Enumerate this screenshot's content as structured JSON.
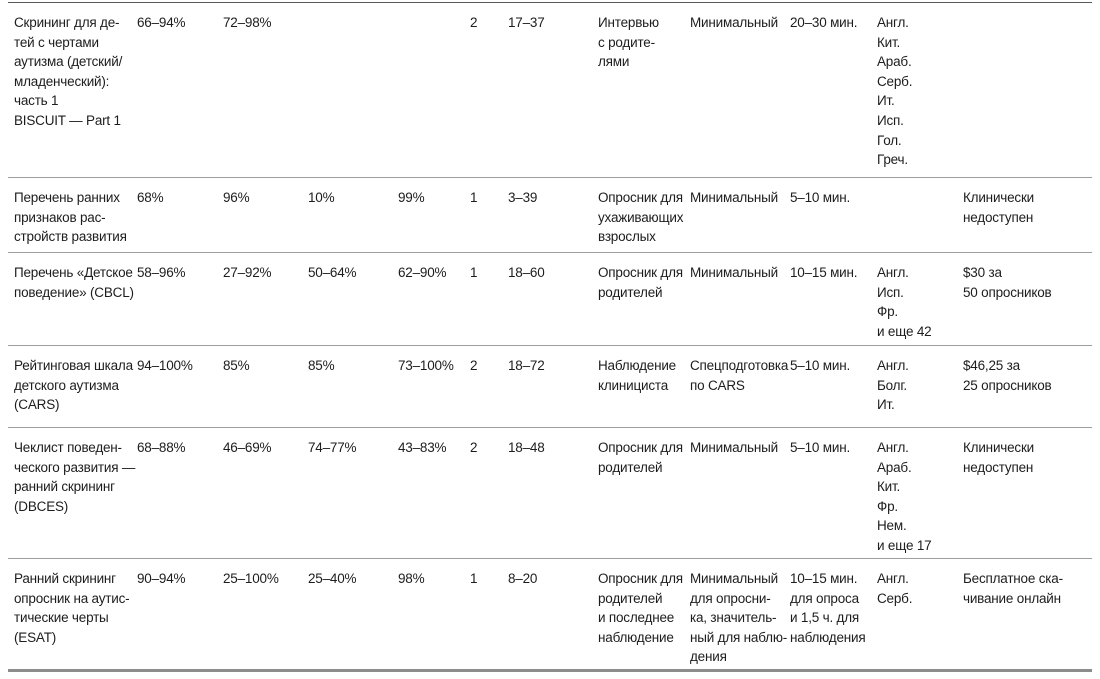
{
  "table": {
    "rows": [
      {
        "name": "Скрининг для де-\nтей с чертами\nаутизма (детский/\nмладенческий):\nчасть 1\nBISCUIT — Part 1",
        "pct1": "66–94%",
        "pct2": "72–98%",
        "pct3": "",
        "pct4": "",
        "studies": "2",
        "age": "17–37",
        "method": "Интервью\nс родите-\nлями",
        "training": "Минимальный",
        "time": "20–30 мин.",
        "languages": "Англ.\nКит.\nАраб.\nСерб.\nИт.\nИсп.\nГол.\nГреч.",
        "availability": ""
      },
      {
        "name": "Перечень ранних\nпризнаков рас-\nстройств развития",
        "pct1": "68%",
        "pct2": "96%",
        "pct3": "10%",
        "pct4": "99%",
        "studies": "1",
        "age": "3–39",
        "method": "Опросник для\nухаживающих\nвзрослых",
        "training": "Минимальный",
        "time": "5–10 мин.",
        "languages": "",
        "availability": "Клинически\nнедоступен"
      },
      {
        "name": "Перечень «Детское\nповедение» (CBCL)",
        "pct1": "58–96%",
        "pct2": "27–92%",
        "pct3": "50–64%",
        "pct4": "62–90%",
        "studies": "1",
        "age": "18–60",
        "method": "Опросник для\nродителей",
        "training": "Минимальный",
        "time": "10–15 мин.",
        "languages": "Англ.\nИсп.\nФр.\nи еще 42",
        "availability": "$30 за\n50 опросников"
      },
      {
        "name": "Рейтинговая шкала\nдетского аутизма\n(CARS)",
        "pct1": "94–100%",
        "pct2": "85%",
        "pct3": "85%",
        "pct4": "73–100%",
        "studies": "2",
        "age": "18–72",
        "method": "Наблюдение\nклинициста",
        "training": "Спецподготовка\nпо CARS",
        "time": "5–10 мин.",
        "languages": "Англ.\nБолг.\nИт.",
        "availability": "$46,25 за\n25 опросников"
      },
      {
        "name": "Чеклист поведен-\nческого развития —\nранний скрининг\n(DBCES)",
        "pct1": "68–88%",
        "pct2": "46–69%",
        "pct3": "74–77%",
        "pct4": "43–83%",
        "studies": "2",
        "age": "18–48",
        "method": "Опросник для\nродителей",
        "training": "Минимальный",
        "time": "5–10 мин.",
        "languages": "Англ.\nАраб.\nКит.\nФр.\nНем.\nи еще 17",
        "availability": "Клинически\nнедоступен"
      },
      {
        "name": "Ранний скрининг\nопросник на аутис-\nтические черты\n(ESAT)",
        "pct1": "90–94%",
        "pct2": "25–100%",
        "pct3": "25–40%",
        "pct4": "98%",
        "studies": "1",
        "age": "8–20",
        "method": "Опросник для\nродителей\nи последнее\nнаблюдение",
        "training": "Минимальный\nдля опросни-\nка, значитель-\nный для наблю-\nдения",
        "time": "10–15 мин.\nдля опроса\nи 1,5 ч. для\nнаблюдения",
        "languages": "Англ.\nСерб.",
        "availability": "Бесплатное ска-\nчивание онлайн"
      }
    ]
  }
}
